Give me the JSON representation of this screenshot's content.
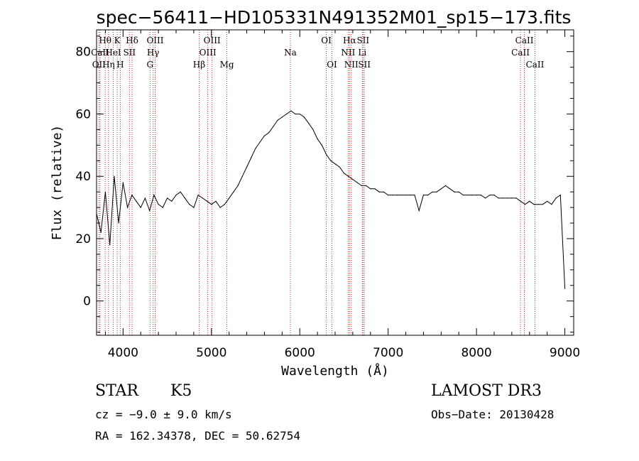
{
  "chart_data": {
    "type": "line",
    "title": "spec−56411−HD105331N491352M01_sp15−173.fits",
    "xlabel": "Wavelength (Å)",
    "ylabel": "Flux (relative)",
    "xlim": [
      3700,
      9100
    ],
    "ylim": [
      -11,
      87
    ],
    "xticks": [
      4000,
      5000,
      6000,
      7000,
      8000,
      9000
    ],
    "yticks": [
      0,
      20,
      40,
      60,
      80
    ],
    "series": [
      {
        "name": "spectrum",
        "x": [
          3700,
          3750,
          3800,
          3850,
          3900,
          3950,
          4000,
          4050,
          4100,
          4150,
          4200,
          4250,
          4300,
          4350,
          4400,
          4450,
          4500,
          4550,
          4600,
          4650,
          4700,
          4750,
          4800,
          4850,
          4900,
          4950,
          5000,
          5050,
          5100,
          5150,
          5200,
          5250,
          5300,
          5350,
          5400,
          5450,
          5500,
          5550,
          5600,
          5650,
          5700,
          5750,
          5800,
          5850,
          5900,
          5950,
          6000,
          6050,
          6100,
          6150,
          6200,
          6250,
          6300,
          6350,
          6400,
          6450,
          6500,
          6550,
          6600,
          6650,
          6700,
          6750,
          6800,
          6850,
          6900,
          6950,
          7000,
          7050,
          7100,
          7150,
          7200,
          7250,
          7300,
          7350,
          7400,
          7450,
          7500,
          7550,
          7600,
          7650,
          7700,
          7750,
          7800,
          7850,
          7900,
          7950,
          8000,
          8050,
          8100,
          8150,
          8200,
          8250,
          8300,
          8350,
          8400,
          8450,
          8500,
          8550,
          8600,
          8650,
          8700,
          8750,
          8800,
          8850,
          8900,
          8950,
          9000
        ],
        "values": [
          28,
          22,
          35,
          18,
          40,
          25,
          38,
          30,
          34,
          32,
          30,
          33,
          29,
          34,
          31,
          30,
          33,
          32,
          34,
          35,
          33,
          31,
          30,
          34,
          33,
          32,
          31,
          32,
          30,
          31,
          33,
          35,
          37,
          40,
          43,
          46,
          49,
          51,
          53,
          54,
          56,
          58,
          59,
          60,
          61,
          60,
          60,
          59,
          57,
          55,
          52,
          50,
          47,
          45,
          44,
          43,
          41,
          40,
          39,
          38,
          37,
          37,
          36,
          36,
          35,
          35,
          34,
          34,
          34,
          34,
          34,
          34,
          34,
          29,
          34,
          34,
          35,
          35,
          36,
          37,
          36,
          35,
          35,
          34,
          34,
          34,
          34,
          34,
          33,
          34,
          34,
          33,
          33,
          33,
          33,
          33,
          32,
          31,
          32,
          31,
          31,
          31,
          32,
          31,
          33,
          34,
          4
        ]
      }
    ],
    "spectral_lines": [
      {
        "label": "OII",
        "x": 3727,
        "row": 3
      },
      {
        "label": "Hθ",
        "x": 3798,
        "row": 1
      },
      {
        "label": "CaII",
        "x": 3740,
        "row": 2
      },
      {
        "label": "Hη",
        "x": 3835,
        "row": 3
      },
      {
        "label": "K",
        "x": 3934,
        "row": 1
      },
      {
        "label": "HeI",
        "x": 3889,
        "row": 2
      },
      {
        "label": "H",
        "x": 3968,
        "row": 3
      },
      {
        "label": "Hδ",
        "x": 4102,
        "row": 1
      },
      {
        "label": "SII",
        "x": 4072,
        "row": 2
      },
      {
        "label": "OIII",
        "x": 4363,
        "row": 1
      },
      {
        "label": "Hγ",
        "x": 4340,
        "row": 2
      },
      {
        "label": "G",
        "x": 4305,
        "row": 3
      },
      {
        "label": "OIII",
        "x": 5007,
        "row": 1
      },
      {
        "label": "OIII",
        "x": 4959,
        "row": 2
      },
      {
        "label": "Hβ",
        "x": 4861,
        "row": 3
      },
      {
        "label": "Mg",
        "x": 5175,
        "row": 3
      },
      {
        "label": "Na",
        "x": 5893,
        "row": 2
      },
      {
        "label": "OI",
        "x": 6300,
        "row": 1
      },
      {
        "label": "OI",
        "x": 6364,
        "row": 3
      },
      {
        "label": "Hα",
        "x": 6563,
        "row": 1
      },
      {
        "label": "NII",
        "x": 6548,
        "row": 2
      },
      {
        "label": "NII",
        "x": 6583,
        "row": 3
      },
      {
        "label": "SII",
        "x": 6716,
        "row": 1
      },
      {
        "label": "Li",
        "x": 6708,
        "row": 2
      },
      {
        "label": "SII",
        "x": 6731,
        "row": 3
      },
      {
        "label": "CaII",
        "x": 8542,
        "row": 1
      },
      {
        "label": "CaII",
        "x": 8498,
        "row": 2
      },
      {
        "label": "CaII",
        "x": 8662,
        "row": 3
      }
    ]
  },
  "footer": {
    "class_label": "STAR",
    "subclass": "K5",
    "survey": "LAMOST DR3",
    "cz": "cz = −9.0 ± 9.0 km/s",
    "obs_date": "Obs−Date: 20130428",
    "coords": "RA = 162.34378, DEC =  50.62754"
  },
  "colors": {
    "line_markers": "#c03030",
    "spectrum": "#000000",
    "axes": "#000000"
  }
}
